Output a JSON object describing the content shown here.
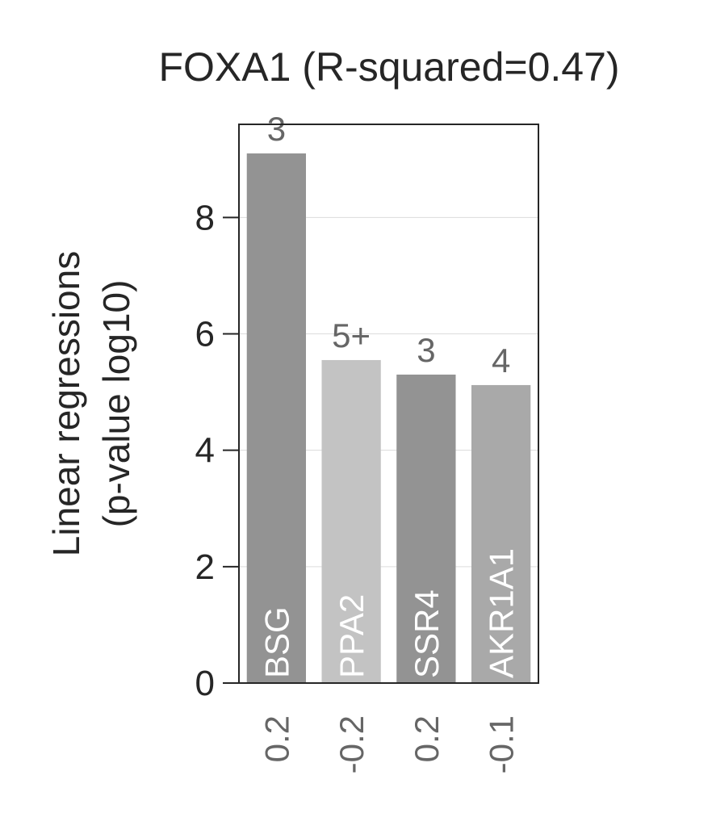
{
  "chart_data": {
    "type": "bar",
    "title": "FOXA1 (R-squared=0.47)",
    "ylabel_lines": [
      "Linear regressions",
      "(p-value log10)"
    ],
    "xlabel": "",
    "ylim": [
      0,
      9.6
    ],
    "yticks": [
      0,
      2,
      4,
      6,
      8
    ],
    "grid": true,
    "categories": [
      "BSG",
      "PPA2",
      "SSR4",
      "AKR1A1"
    ],
    "values": [
      9.1,
      5.55,
      5.3,
      5.12
    ],
    "bar_top_labels": [
      "3",
      "5+",
      "3",
      "4"
    ],
    "x_tick_labels": [
      "0.2",
      "-0.2",
      "0.2",
      "-0.1"
    ],
    "bar_colors": [
      "#939393",
      "#c3c3c3",
      "#939393",
      "#a9a9a9"
    ]
  }
}
